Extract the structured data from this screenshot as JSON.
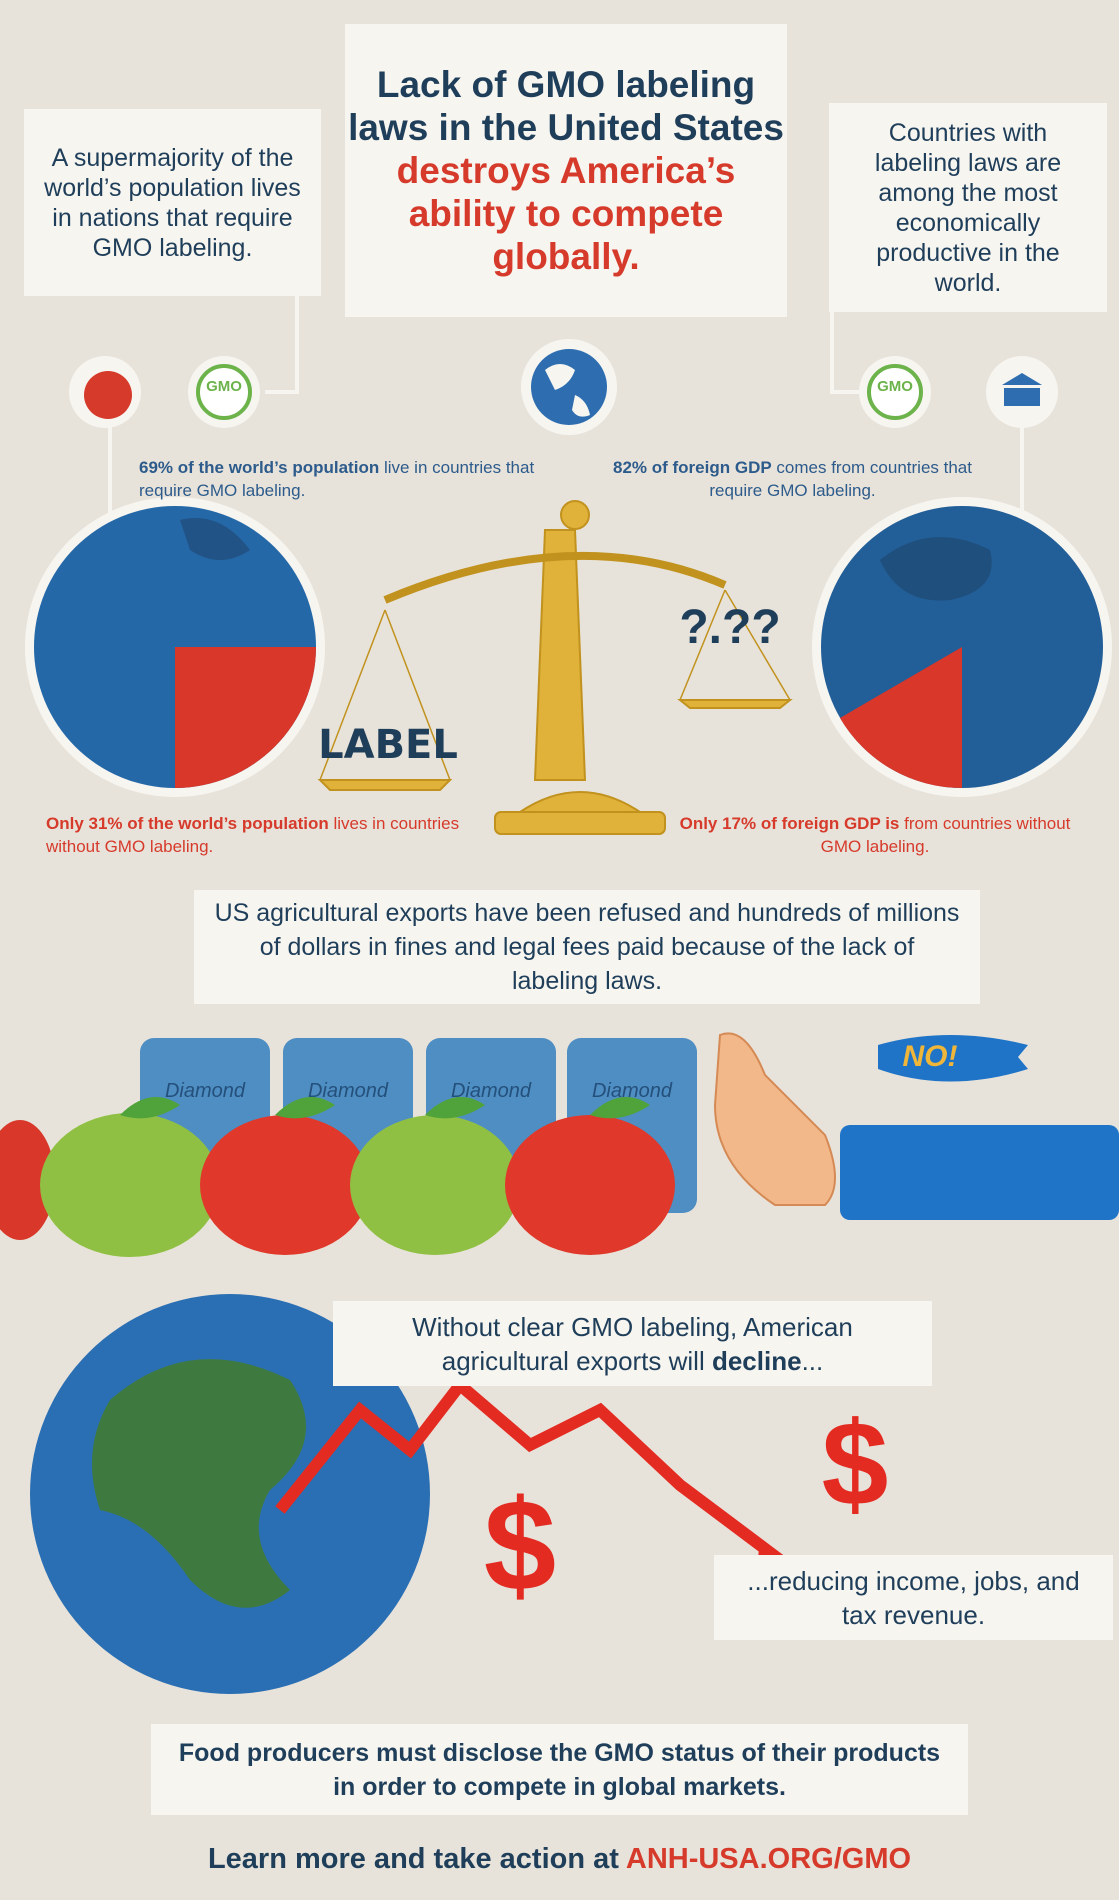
{
  "header": {
    "title": "Lack of GMO labeling laws in the United States",
    "highlight": "destroys America’s ability to compete globally."
  },
  "left_box": "A supermajority of the world’s population lives in nations that require GMO labeling.",
  "right_box": "Countries with labeling laws are among the most economically productive in the world.",
  "icons": {
    "gmo_left": "GMO",
    "gmo_right": "GMO"
  },
  "stat_left": {
    "bold": "69% of the world’s population",
    "rest": " live in countries that require GMO labeling."
  },
  "stat_right": {
    "bold": "82% of foreign GDP",
    "rest": " comes from countries that require GMO labeling."
  },
  "minority_left": {
    "bold": "Only 31% of the world’s population",
    "rest": " lives in countries without GMO labeling."
  },
  "minority_right": {
    "bold": "Only 17% of foreign GDP is",
    "rest": " from countries without GMO labeling."
  },
  "scale": {
    "label": "LABEL",
    "question": "?.??"
  },
  "cans": [
    "Diamond",
    "Diamond",
    "Diamond",
    "Diamond"
  ],
  "speech": "NO!",
  "exports": "US agricultural exports have been refused and hundreds of millions of dollars in fines and legal fees paid because of the lack of labeling laws.",
  "decline": {
    "text": "Without clear GMO labeling, American agricultural exports will ",
    "bold": "decline",
    "end": "..."
  },
  "dollars": [
    "$",
    "$"
  ],
  "reducing": "...reducing income, jobs, and tax revenue.",
  "footer": {
    "statement": "Food producers must disclose the GMO status of their products in order to compete in global markets.",
    "cta": "Learn more and take action at ",
    "link": "ANH-USA.ORG/GMO"
  }
}
